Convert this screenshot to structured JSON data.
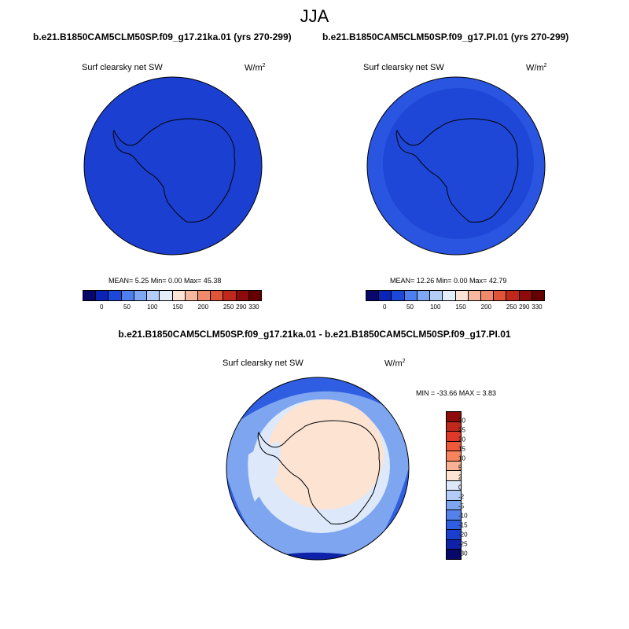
{
  "season": "JJA",
  "panels": {
    "left": {
      "case_title": "b.e21.B1850CAM5CLM50SP.f09_g17.21ka.01 (yrs 270-299)",
      "variable": "Surf clearsky net SW",
      "unit": "W/m",
      "unit_exp": "2",
      "stats": "MEAN=   5.25  Min=   0.00  Max=  45.38"
    },
    "right": {
      "case_title": "b.e21.B1850CAM5CLM50SP.f09_g17.PI.01 (yrs 270-299)",
      "variable": "Surf clearsky net SW",
      "unit": "W/m",
      "unit_exp": "2",
      "stats": "MEAN=  12.26  Min=   0.00  Max=  42.79"
    },
    "diff": {
      "case_title": "b.e21.B1850CAM5CLM50SP.f09_g17.21ka.01 - b.e21.B1850CAM5CLM50SP.f09_g17.PI.01",
      "variable": "Surf clearsky net SW",
      "unit": "W/m",
      "unit_exp": "2",
      "stats": "MIN = -33.66 MAX =   3.83"
    }
  },
  "colorbar_abs": {
    "labels": [
      "0",
      "50",
      "100",
      "150",
      "200",
      "250",
      "290",
      "330"
    ],
    "colors": [
      "#08086b",
      "#0a24b8",
      "#1b48d8",
      "#4d7ff0",
      "#7ea8f3",
      "#b3cdf7",
      "#e3eefb",
      "#fbe3d6",
      "#f7b8a0",
      "#f08a6c",
      "#e0553a",
      "#c0281c",
      "#8e0b0b",
      "#660000"
    ]
  },
  "colorbar_diff": {
    "labels": [
      "30",
      "25",
      "20",
      "15",
      "10",
      "5",
      "2",
      "0",
      "-2",
      "-5",
      "-10",
      "-15",
      "-20",
      "-25",
      "-30"
    ],
    "colors": [
      "#8e0b0b",
      "#c0281c",
      "#e0392a",
      "#f0583a",
      "#f7845c",
      "#f9b193",
      "#fce3d2",
      "#dde9fb",
      "#b3ccf5",
      "#7ea5ef",
      "#5482ea",
      "#2f5ee2",
      "#1a3fcf",
      "#0d22a8",
      "#08086b"
    ]
  },
  "map_colors": {
    "abs_low": "#1b3fd0",
    "abs_pi": "#2a55e0",
    "diff_neg_strong": "#0d22a8",
    "diff_neg": "#2f5ee2",
    "diff_neg_mid": "#7ea5ef",
    "diff_neg_weak": "#dde9fb",
    "diff_pos": "#fce3d2"
  }
}
